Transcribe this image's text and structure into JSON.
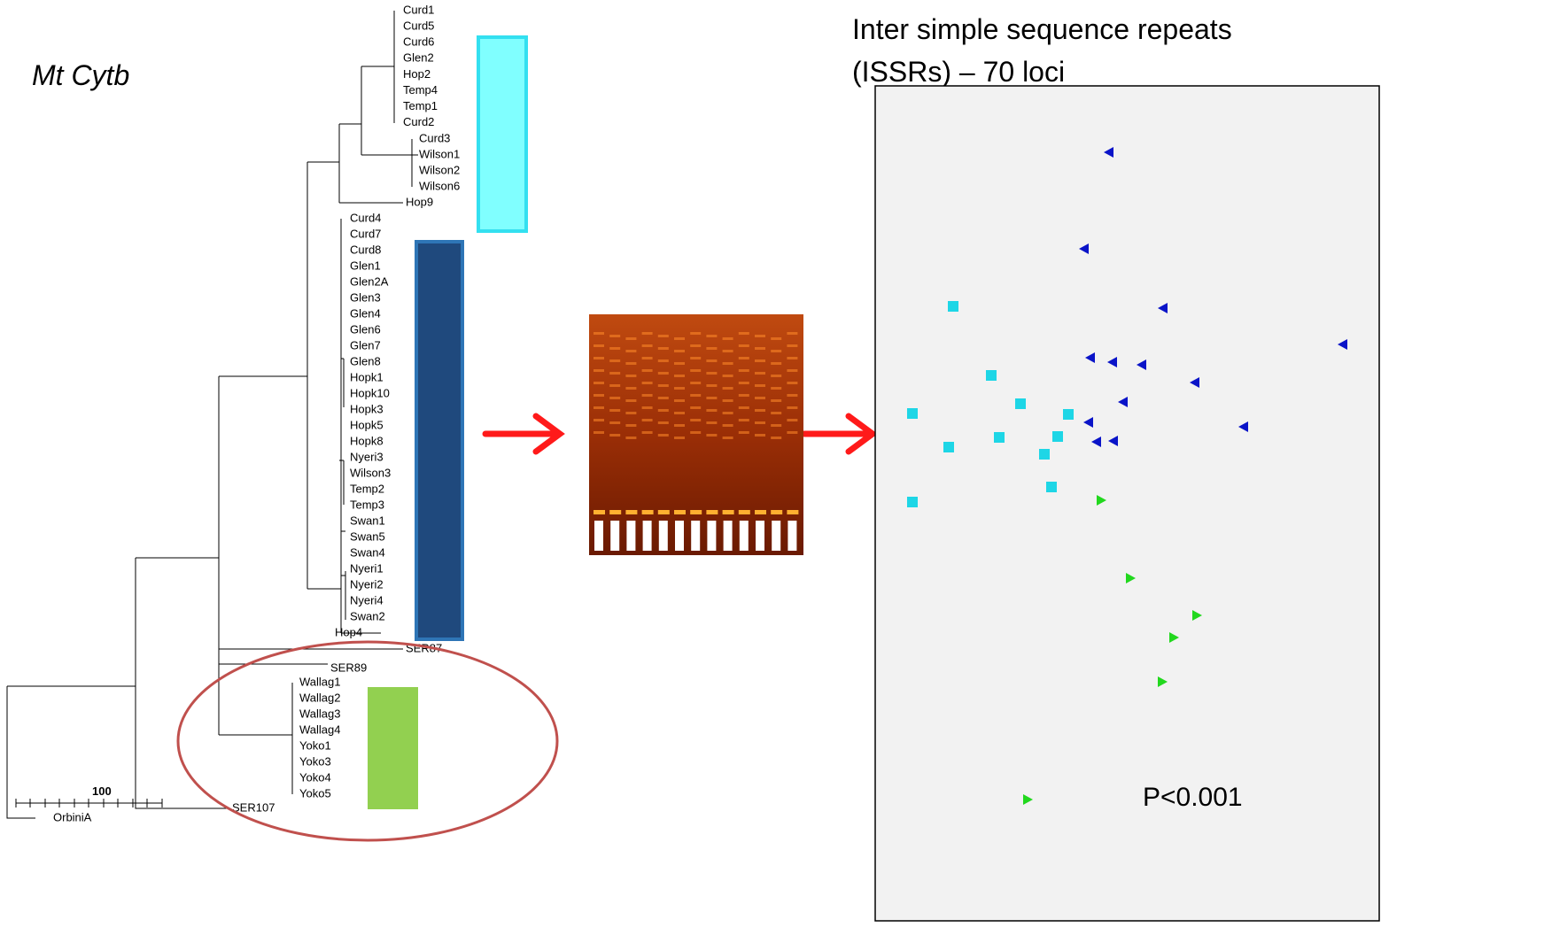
{
  "title": "Mt Cytb",
  "tree": {
    "leaves": [
      "Curd1",
      "Curd5",
      "Curd6",
      "Glen2",
      "Hop2",
      "Temp4",
      "Temp1",
      "Curd2",
      "Curd3",
      "Wilson1",
      "Wilson2",
      "Wilson6",
      "Hop9",
      "Curd4",
      "Curd7",
      "Curd8",
      "Glen1",
      "Glen2A",
      "Glen3",
      "Glen4",
      "Glen6",
      "Glen7",
      "Glen8",
      "Hopk1",
      "Hopk10",
      "Hopk3",
      "Hopk5",
      "Hopk8",
      "Nyeri3",
      "Wilson3",
      "Temp2",
      "Temp3",
      "Swan1",
      "Swan5",
      "Swan4",
      "Nyeri1",
      "Nyeri2",
      "Nyeri4",
      "Swan2",
      "Hop4",
      "SER87",
      "SER89",
      "Wallag1",
      "Wallag2",
      "Wallag3",
      "Wallag4",
      "Yoko1",
      "Yoko3",
      "Yoko4",
      "Yoko5",
      "SER107",
      "OrbiniA"
    ],
    "scale": "100"
  },
  "pcoa": {
    "title": [
      "Inter simple sequence repeats",
      "(ISSRs) – 70 loci"
    ],
    "p_value": "P<0.001"
  }
}
